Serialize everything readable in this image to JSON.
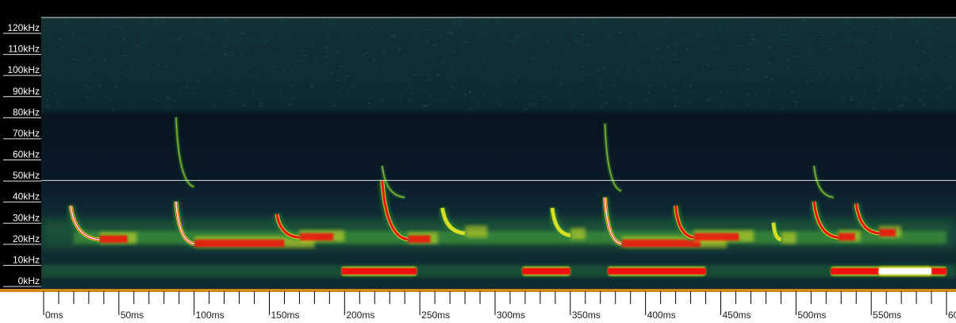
{
  "chart_data": {
    "type": "heatmap",
    "title": "",
    "xlabel": "",
    "ylabel": "",
    "x_unit": "ms",
    "y_unit": "kHz",
    "xlim": [
      0,
      600
    ],
    "ylim": [
      0,
      125
    ],
    "y_ticks": [
      {
        "value": 0,
        "label": "0kHz"
      },
      {
        "value": 10,
        "label": "10kHz"
      },
      {
        "value": 20,
        "label": "20kHz"
      },
      {
        "value": 30,
        "label": "30kHz"
      },
      {
        "value": 40,
        "label": "40kHz"
      },
      {
        "value": 50,
        "label": "50kHz"
      },
      {
        "value": 60,
        "label": "60kHz"
      },
      {
        "value": 70,
        "label": "70kHz"
      },
      {
        "value": 80,
        "label": "80kHz"
      },
      {
        "value": 90,
        "label": "90kHz"
      },
      {
        "value": 100,
        "label": "100kHz"
      },
      {
        "value": 110,
        "label": "110kHz"
      },
      {
        "value": 120,
        "label": "120kHz"
      }
    ],
    "x_ticks": [
      {
        "value": 0,
        "label": "0ms"
      },
      {
        "value": 50,
        "label": "50ms"
      },
      {
        "value": 100,
        "label": "100ms"
      },
      {
        "value": 150,
        "label": "150ms"
      },
      {
        "value": 200,
        "label": "200ms"
      },
      {
        "value": 250,
        "label": "250ms"
      },
      {
        "value": 300,
        "label": "300ms"
      },
      {
        "value": 350,
        "label": "350ms"
      },
      {
        "value": 400,
        "label": "400ms"
      },
      {
        "value": 450,
        "label": "450ms"
      },
      {
        "value": 500,
        "label": "500ms"
      },
      {
        "value": 550,
        "label": "550ms"
      },
      {
        "value": 600,
        "label": "600ms"
      }
    ],
    "x_minor_step": 10,
    "reference_lines_khz": [
      48
    ],
    "colors": {
      "background": "#0a1a26",
      "low": "#173a3c",
      "mid": "#2f8a3a",
      "high": "#d8e020",
      "peak": "#f01010",
      "max": "#ffffff",
      "axis": "#d08a1c"
    },
    "calls": [
      {
        "t_start": 18,
        "t_end": 37,
        "f_start": 36,
        "f_end": 20,
        "intensity": "max",
        "tail_ms": 25
      },
      {
        "t_start": 88,
        "t_end": 100,
        "f_start": 38,
        "f_end": 18,
        "intensity": "max",
        "tail_ms": 80
      },
      {
        "t_start": 155,
        "t_end": 170,
        "f_start": 32,
        "f_end": 21,
        "intensity": "peak",
        "tail_ms": 30
      },
      {
        "t_start": 225,
        "t_end": 242,
        "f_start": 48,
        "f_end": 20,
        "intensity": "peak",
        "tail_ms": 20
      },
      {
        "t_start": 265,
        "t_end": 280,
        "f_start": 35,
        "f_end": 23,
        "intensity": "high",
        "tail_ms": 15
      },
      {
        "t_start": 338,
        "t_end": 350,
        "f_start": 35,
        "f_end": 22,
        "intensity": "high",
        "tail_ms": 10
      },
      {
        "t_start": 373,
        "t_end": 384,
        "f_start": 40,
        "f_end": 18,
        "intensity": "max",
        "tail_ms": 70
      },
      {
        "t_start": 420,
        "t_end": 432,
        "f_start": 36,
        "f_end": 21,
        "intensity": "peak",
        "tail_ms": 40
      },
      {
        "t_start": 485,
        "t_end": 490,
        "f_start": 28,
        "f_end": 20,
        "intensity": "high",
        "tail_ms": 10
      },
      {
        "t_start": 512,
        "t_end": 528,
        "f_start": 38,
        "f_end": 21,
        "intensity": "peak",
        "tail_ms": 15
      },
      {
        "t_start": 540,
        "t_end": 555,
        "f_start": 37,
        "f_end": 23,
        "intensity": "peak",
        "tail_ms": 15
      }
    ],
    "harmonics": [
      {
        "t_start": 88,
        "t_end": 100,
        "f_start": 78,
        "f_end": 45
      },
      {
        "t_start": 225,
        "t_end": 240,
        "f_start": 55,
        "f_end": 40
      },
      {
        "t_start": 373,
        "t_end": 384,
        "f_start": 75,
        "f_end": 43
      },
      {
        "t_start": 512,
        "t_end": 525,
        "f_start": 55,
        "f_end": 40
      }
    ],
    "noise_bands": [
      {
        "t_start": 198,
        "t_end": 248,
        "f": 5,
        "intensity": "peak"
      },
      {
        "t_start": 318,
        "t_end": 350,
        "f": 5,
        "intensity": "peak"
      },
      {
        "t_start": 375,
        "t_end": 440,
        "f": 5,
        "intensity": "peak"
      },
      {
        "t_start": 523,
        "t_end": 600,
        "f": 5,
        "intensity": "peak"
      },
      {
        "t_start": 555,
        "t_end": 590,
        "f": 5,
        "intensity": "max"
      }
    ]
  }
}
